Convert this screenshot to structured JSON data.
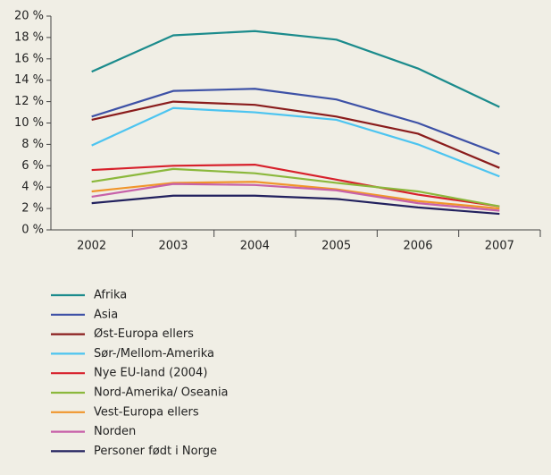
{
  "chart_data": {
    "type": "line",
    "categories": [
      "2002",
      "2003",
      "2004",
      "2005",
      "2006",
      "2007"
    ],
    "ylim": [
      0,
      20
    ],
    "yticks": [
      {
        "value": 0,
        "label": "0 %"
      },
      {
        "value": 2,
        "label": "2 %"
      },
      {
        "value": 4,
        "label": "4 %"
      },
      {
        "value": 6,
        "label": "6 %"
      },
      {
        "value": 8,
        "label": "8 %"
      },
      {
        "value": 10,
        "label": "10 %"
      },
      {
        "value": 12,
        "label": "12 %"
      },
      {
        "value": 14,
        "label": "14 %"
      },
      {
        "value": 16,
        "label": "16 %"
      },
      {
        "value": 18,
        "label": "18 %"
      },
      {
        "value": 20,
        "label": "20 %"
      }
    ],
    "legend": "bottom",
    "series": [
      {
        "name": "Afrika",
        "color": "#1b8b8c",
        "values": [
          14.8,
          18.2,
          18.6,
          17.8,
          15.1,
          11.5
        ]
      },
      {
        "name": "Asia",
        "color": "#3d51a6",
        "values": [
          10.6,
          13.0,
          13.2,
          12.2,
          10.0,
          7.1
        ]
      },
      {
        "name": "Øst-Europa ellers",
        "color": "#8a1c1c",
        "values": [
          10.3,
          12.0,
          11.7,
          10.6,
          9.0,
          5.8
        ]
      },
      {
        "name": "Sør-/Mellom-Amerika",
        "color": "#4cc4f0",
        "values": [
          7.9,
          11.4,
          11.0,
          10.3,
          8.0,
          5.0
        ]
      },
      {
        "name": "Nye EU-land (2004)",
        "color": "#d7202b",
        "values": [
          5.6,
          6.0,
          6.1,
          4.7,
          3.3,
          2.2
        ]
      },
      {
        "name": "Nord-Amerika/ Oseania",
        "color": "#8bb83c",
        "values": [
          4.5,
          5.7,
          5.3,
          4.4,
          3.6,
          2.2
        ]
      },
      {
        "name": "Vest-Europa ellers",
        "color": "#f0952b",
        "values": [
          3.6,
          4.4,
          4.5,
          3.8,
          2.7,
          2.0
        ]
      },
      {
        "name": "Norden",
        "color": "#c761a9",
        "values": [
          3.1,
          4.3,
          4.2,
          3.7,
          2.5,
          1.8
        ]
      },
      {
        "name": "Personer født i Norge",
        "color": "#22215e",
        "values": [
          2.5,
          3.2,
          3.2,
          2.9,
          2.1,
          1.5
        ]
      }
    ]
  }
}
